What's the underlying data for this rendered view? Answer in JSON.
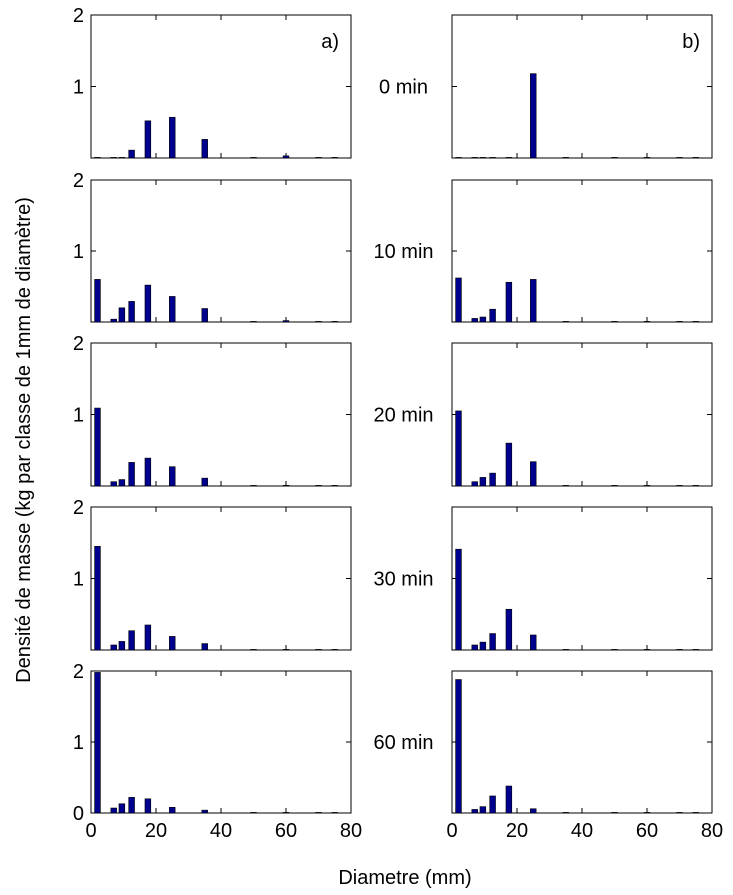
{
  "chart_data": {
    "type": "bar",
    "ylabel": "Densité de masse (kg par classe de 1mm de diamètre)",
    "xlabel": "Diametre (mm)",
    "xlim": [
      0,
      80
    ],
    "ylim": [
      0,
      2
    ],
    "xticks": [
      0,
      20,
      40,
      60,
      80
    ],
    "yticks": [
      0,
      1,
      2
    ],
    "grid": false,
    "bar_color": "#00008f",
    "columns": [
      {
        "label": "a)"
      },
      {
        "label": "b)"
      }
    ],
    "rows": [
      {
        "time_label": "0 min",
        "panels": [
          {
            "bins": [
              [
                2,
                0
              ],
              [
                7,
                0
              ],
              [
                9.5,
                0
              ],
              [
                12.5,
                0.11
              ],
              [
                17.5,
                0.52
              ],
              [
                25,
                0.57
              ],
              [
                35,
                0.26
              ],
              [
                50,
                0
              ],
              [
                60,
                0.03
              ],
              [
                70,
                0
              ],
              [
                75,
                0
              ]
            ]
          },
          {
            "bins": [
              [
                2,
                0
              ],
              [
                7,
                0
              ],
              [
                9.5,
                0
              ],
              [
                12.5,
                0
              ],
              [
                17.5,
                0
              ],
              [
                25,
                1.18
              ],
              [
                35,
                0
              ],
              [
                50,
                0
              ],
              [
                60,
                0
              ],
              [
                70,
                0
              ],
              [
                75,
                0
              ]
            ]
          }
        ]
      },
      {
        "time_label": "10 min",
        "panels": [
          {
            "bins": [
              [
                2,
                0.6
              ],
              [
                7,
                0.04
              ],
              [
                9.5,
                0.2
              ],
              [
                12.5,
                0.29
              ],
              [
                17.5,
                0.52
              ],
              [
                25,
                0.36
              ],
              [
                35,
                0.19
              ],
              [
                50,
                0
              ],
              [
                60,
                0.02
              ],
              [
                70,
                0
              ],
              [
                75,
                0
              ]
            ]
          },
          {
            "bins": [
              [
                2,
                0.62
              ],
              [
                7,
                0.05
              ],
              [
                9.5,
                0.07
              ],
              [
                12.5,
                0.18
              ],
              [
                17.5,
                0.56
              ],
              [
                25,
                0.6
              ],
              [
                35,
                0
              ],
              [
                50,
                0
              ],
              [
                60,
                0
              ],
              [
                70,
                0
              ],
              [
                75,
                0
              ]
            ]
          }
        ]
      },
      {
        "time_label": "20 min",
        "panels": [
          {
            "bins": [
              [
                2,
                1.09
              ],
              [
                7,
                0.06
              ],
              [
                9.5,
                0.09
              ],
              [
                12.5,
                0.33
              ],
              [
                17.5,
                0.39
              ],
              [
                25,
                0.27
              ],
              [
                35,
                0.11
              ],
              [
                50,
                0
              ],
              [
                60,
                0.01
              ],
              [
                70,
                0
              ],
              [
                75,
                0
              ]
            ]
          },
          {
            "bins": [
              [
                2,
                1.05
              ],
              [
                7,
                0.06
              ],
              [
                9.5,
                0.12
              ],
              [
                12.5,
                0.18
              ],
              [
                17.5,
                0.6
              ],
              [
                25,
                0.34
              ],
              [
                35,
                0
              ],
              [
                50,
                0
              ],
              [
                60,
                0
              ],
              [
                70,
                0
              ],
              [
                75,
                0
              ]
            ]
          }
        ]
      },
      {
        "time_label": "30 min",
        "panels": [
          {
            "bins": [
              [
                2,
                1.45
              ],
              [
                7,
                0.07
              ],
              [
                9.5,
                0.12
              ],
              [
                12.5,
                0.27
              ],
              [
                17.5,
                0.35
              ],
              [
                25,
                0.19
              ],
              [
                35,
                0.09
              ],
              [
                50,
                0
              ],
              [
                60,
                0
              ],
              [
                70,
                0
              ],
              [
                75,
                0
              ]
            ]
          },
          {
            "bins": [
              [
                2,
                1.41
              ],
              [
                7,
                0.07
              ],
              [
                9.5,
                0.11
              ],
              [
                12.5,
                0.23
              ],
              [
                17.5,
                0.57
              ],
              [
                25,
                0.21
              ],
              [
                35,
                0
              ],
              [
                50,
                0
              ],
              [
                60,
                0
              ],
              [
                70,
                0
              ],
              [
                75,
                0
              ]
            ]
          }
        ]
      },
      {
        "time_label": "60 min",
        "panels": [
          {
            "bins": [
              [
                2,
                1.98
              ],
              [
                7,
                0.07
              ],
              [
                9.5,
                0.13
              ],
              [
                12.5,
                0.22
              ],
              [
                17.5,
                0.2
              ],
              [
                25,
                0.08
              ],
              [
                35,
                0.04
              ],
              [
                50,
                0
              ],
              [
                60,
                0
              ],
              [
                70,
                0
              ],
              [
                75,
                0
              ]
            ]
          },
          {
            "bins": [
              [
                2,
                1.88
              ],
              [
                7,
                0.05
              ],
              [
                9.5,
                0.09
              ],
              [
                12.5,
                0.24
              ],
              [
                17.5,
                0.38
              ],
              [
                25,
                0.06
              ],
              [
                35,
                0
              ],
              [
                50,
                0
              ],
              [
                60,
                0
              ],
              [
                70,
                0
              ],
              [
                75,
                0
              ]
            ]
          }
        ]
      }
    ]
  }
}
